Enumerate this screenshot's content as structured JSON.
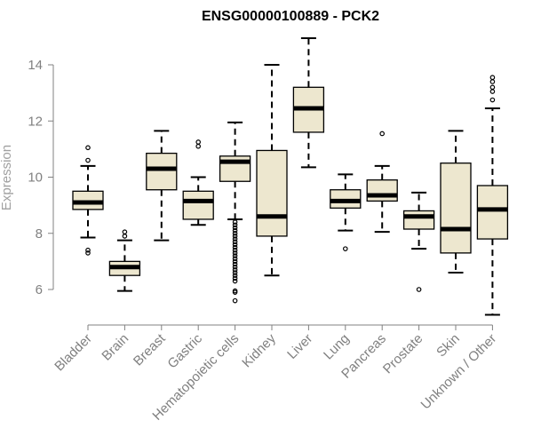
{
  "chart_data": {
    "type": "boxplot",
    "title": "ENSG00000100889 - PCK2",
    "xlabel": "",
    "ylabel": "Expression",
    "ylim": [
      5.0,
      15.0
    ],
    "yticks": [
      6,
      8,
      10,
      12,
      14
    ],
    "grid": false,
    "legend": "none",
    "categories": [
      "Bladder",
      "Brain",
      "Breast",
      "Gastric",
      "Hematopoietic cells",
      "Kidney",
      "Liver",
      "Lung",
      "Pancreas",
      "Prostate",
      "Skin",
      "Unknown / Other"
    ],
    "boxes": [
      {
        "whisker_low": 7.85,
        "q1": 8.85,
        "median": 9.1,
        "q3": 9.5,
        "whisker_high": 10.4,
        "outliers": [
          11.05,
          10.6,
          7.4,
          7.3
        ]
      },
      {
        "whisker_low": 5.95,
        "q1": 6.5,
        "median": 6.8,
        "q3": 7.0,
        "whisker_high": 7.75,
        "outliers": [
          8.05,
          7.9
        ]
      },
      {
        "whisker_low": 7.75,
        "q1": 9.55,
        "median": 10.3,
        "q3": 10.85,
        "whisker_high": 11.65,
        "outliers": []
      },
      {
        "whisker_low": 8.3,
        "q1": 8.5,
        "median": 9.15,
        "q3": 9.5,
        "whisker_high": 10.0,
        "outliers": [
          11.25,
          11.1
        ]
      },
      {
        "whisker_low": 8.5,
        "q1": 9.85,
        "median": 10.55,
        "q3": 10.75,
        "whisker_high": 11.95,
        "outliers": [
          8.4,
          8.3,
          8.2,
          8.1,
          8.0,
          7.9,
          7.8,
          7.7,
          7.6,
          7.5,
          7.4,
          7.3,
          7.2,
          7.1,
          7.0,
          6.9,
          6.8,
          6.7,
          6.6,
          6.5,
          6.4,
          6.3,
          5.95,
          5.9,
          5.6
        ]
      },
      {
        "whisker_low": 6.5,
        "q1": 7.9,
        "median": 8.6,
        "q3": 10.95,
        "whisker_high": 14.0,
        "outliers": []
      },
      {
        "whisker_low": 10.35,
        "q1": 11.6,
        "median": 12.45,
        "q3": 13.2,
        "whisker_high": 14.95,
        "outliers": []
      },
      {
        "whisker_low": 8.1,
        "q1": 8.9,
        "median": 9.15,
        "q3": 9.55,
        "whisker_high": 10.1,
        "outliers": [
          7.45
        ]
      },
      {
        "whisker_low": 8.05,
        "q1": 9.15,
        "median": 9.35,
        "q3": 9.9,
        "whisker_high": 10.4,
        "outliers": [
          11.55
        ]
      },
      {
        "whisker_low": 7.45,
        "q1": 8.15,
        "median": 8.6,
        "q3": 8.8,
        "whisker_high": 9.45,
        "outliers": [
          6.0
        ]
      },
      {
        "whisker_low": 6.6,
        "q1": 7.3,
        "median": 8.15,
        "q3": 10.5,
        "whisker_high": 11.65,
        "outliers": []
      },
      {
        "whisker_low": 5.1,
        "q1": 7.8,
        "median": 8.85,
        "q3": 9.7,
        "whisker_high": 12.45,
        "outliers": [
          13.55,
          13.4,
          13.2,
          13.05,
          12.75
        ]
      }
    ],
    "box_fill": "#ede7cf",
    "outline_color": "#000000",
    "axis_color": "#808080"
  }
}
